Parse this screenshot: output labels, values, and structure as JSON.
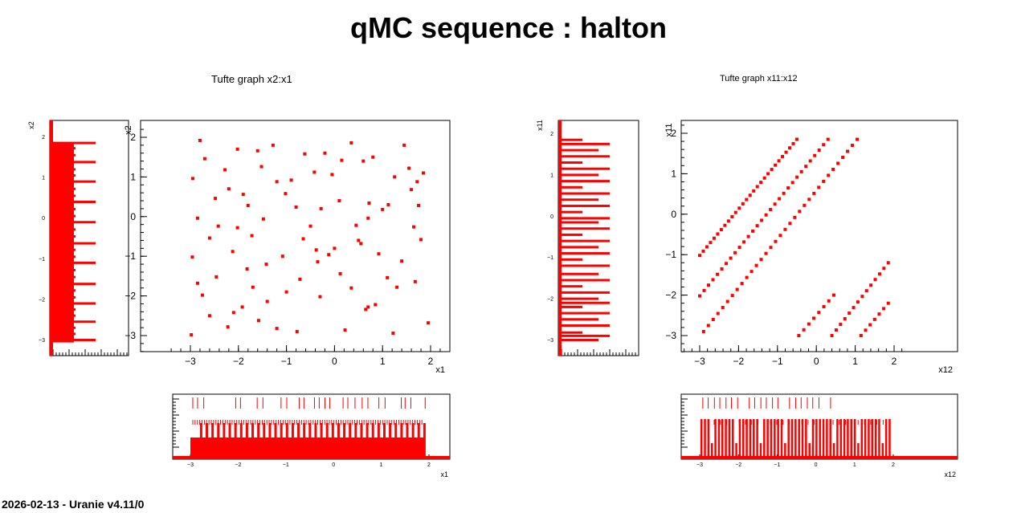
{
  "title": "qMC sequence : halton",
  "footer": "2026-02-13 - Uranie v4.11/0",
  "chart_data": [
    {
      "name": "tufte-left",
      "type": "scatter",
      "title": "Tufte graph x2:x1",
      "xlabel": "x1",
      "ylabel": "x2",
      "xlim": [
        -3.4,
        2.4
      ],
      "ylim": [
        -3.4,
        2.4
      ],
      "xticks": [
        -3,
        -2,
        -1,
        0,
        1,
        2
      ],
      "yticks": [
        -3,
        -2,
        -1,
        0,
        1,
        2
      ],
      "color": "#ff0000",
      "points": [
        [
          -2.98,
          -2.98
        ],
        [
          -2.8,
          1.92
        ],
        [
          -2.7,
          1.46
        ],
        [
          -2.95,
          0.96
        ],
        [
          -2.85,
          -0.04
        ],
        [
          -2.6,
          -0.54
        ],
        [
          -2.96,
          -1.02
        ],
        [
          -2.85,
          -1.68
        ],
        [
          -2.75,
          -1.98
        ],
        [
          -2.6,
          -2.5
        ],
        [
          -2.48,
          0.46
        ],
        [
          -2.42,
          -0.24
        ],
        [
          -2.46,
          -1.52
        ],
        [
          -2.28,
          1.18
        ],
        [
          -2.2,
          0.7
        ],
        [
          -2.12,
          -0.88
        ],
        [
          -2.22,
          -2.78
        ],
        [
          -2.1,
          -2.42
        ],
        [
          -2.02,
          1.7
        ],
        [
          -2.02,
          -0.28
        ],
        [
          -1.92,
          -2.28
        ],
        [
          -1.9,
          0.56
        ],
        [
          -1.8,
          0.28
        ],
        [
          -1.82,
          -1.32
        ],
        [
          -1.7,
          -1.78
        ],
        [
          -1.6,
          1.66
        ],
        [
          -1.52,
          1.26
        ],
        [
          -1.72,
          -0.48
        ],
        [
          -1.58,
          -2.62
        ],
        [
          -1.48,
          -0.06
        ],
        [
          -1.42,
          -1.2
        ],
        [
          -1.4,
          -2.14
        ],
        [
          -1.28,
          1.8
        ],
        [
          -1.2,
          0.88
        ],
        [
          -1.2,
          -2.82
        ],
        [
          -1.08,
          -1.0
        ],
        [
          -1.02,
          0.58
        ],
        [
          -1.0,
          -1.9
        ],
        [
          -0.9,
          0.92
        ],
        [
          -0.8,
          0.24
        ],
        [
          -0.78,
          -2.9
        ],
        [
          -0.72,
          -1.58
        ],
        [
          -0.62,
          1.58
        ],
        [
          -0.65,
          -0.56
        ],
        [
          -0.5,
          -0.24
        ],
        [
          -0.42,
          1.12
        ],
        [
          -0.38,
          -0.84
        ],
        [
          -0.3,
          -2.02
        ],
        [
          -0.2,
          1.6
        ],
        [
          -0.28,
          0.2
        ],
        [
          -0.12,
          -0.96
        ],
        [
          -0.05,
          1.06
        ],
        [
          0.0,
          -0.8
        ],
        [
          0.12,
          -1.44
        ],
        [
          0.1,
          0.4
        ],
        [
          0.22,
          -2.86
        ],
        [
          0.15,
          1.42
        ],
        [
          0.35,
          1.86
        ],
        [
          0.35,
          -1.8
        ],
        [
          0.45,
          -0.22
        ],
        [
          0.5,
          -0.6
        ],
        [
          0.6,
          1.4
        ],
        [
          0.65,
          -2.34
        ],
        [
          0.7,
          -0.04
        ],
        [
          0.8,
          1.5
        ],
        [
          0.7,
          -2.28
        ],
        [
          0.72,
          0.34
        ],
        [
          0.85,
          -2.22
        ],
        [
          0.92,
          -0.94
        ],
        [
          1.0,
          0.18
        ],
        [
          1.1,
          -1.54
        ],
        [
          1.12,
          0.3
        ],
        [
          1.22,
          -2.94
        ],
        [
          1.25,
          1.0
        ],
        [
          1.3,
          -1.78
        ],
        [
          1.4,
          -1.12
        ],
        [
          1.45,
          1.8
        ],
        [
          1.55,
          1.22
        ],
        [
          1.6,
          0.68
        ],
        [
          1.65,
          -0.26
        ],
        [
          1.68,
          -1.64
        ],
        [
          1.75,
          0.28
        ],
        [
          1.8,
          -0.58
        ],
        [
          1.85,
          1.1
        ],
        [
          1.95,
          -2.68
        ],
        [
          1.72,
          0.88
        ],
        [
          0.55,
          -0.68
        ],
        [
          -0.35,
          -1.14
        ]
      ],
      "x_marginal_ticks_top": [
        -2.95,
        -2.85,
        -2.72,
        -2.05,
        -1.95,
        -1.6,
        -1.48,
        -1.1,
        -0.98,
        -0.72,
        -0.62,
        -0.4,
        -0.3,
        -0.18,
        -0.08,
        0.2,
        0.3,
        0.45,
        0.6,
        0.72,
        0.95,
        1.08,
        1.42,
        1.5,
        1.62,
        1.92
      ],
      "y_marginal_bars": [
        -3.0,
        -2.85,
        -2.7,
        -2.55,
        -2.4,
        -2.25,
        -2.1,
        -1.95,
        -1.78,
        -1.62,
        -1.45,
        -1.28,
        -1.1,
        -0.95,
        -0.78,
        -0.62,
        -0.45,
        -0.28,
        -0.1,
        0.05,
        0.22,
        0.4,
        0.55,
        0.72,
        0.9,
        1.05,
        1.2,
        1.38,
        1.55,
        1.72,
        1.85
      ]
    },
    {
      "name": "tufte-right",
      "type": "scatter",
      "title": "Tufte graph x11:x12",
      "xlabel": "x12",
      "ylabel": "x11",
      "xlim": [
        -3.4,
        2.4
      ],
      "ylim": [
        -3.4,
        2.4
      ],
      "xticks": [
        -3,
        -2,
        -1,
        0,
        1,
        2
      ],
      "yticks": [
        -3,
        -2,
        -1,
        0,
        1,
        2
      ],
      "color": "#ff0000",
      "lines": [
        {
          "x0": -3.0,
          "y0": -1.02,
          "x1": -0.5,
          "y1": 1.85,
          "n": 28
        },
        {
          "x0": -3.0,
          "y0": -2.02,
          "x1": 0.3,
          "y1": 1.85,
          "n": 30
        },
        {
          "x0": -2.9,
          "y0": -2.9,
          "x1": 1.05,
          "y1": 1.85,
          "n": 33
        },
        {
          "x0": -0.45,
          "y0": -3.0,
          "x1": 0.45,
          "y1": -2.0,
          "n": 8
        },
        {
          "x0": 0.4,
          "y0": -3.0,
          "x1": 1.85,
          "y1": -1.2,
          "n": 14
        },
        {
          "x0": 1.15,
          "y0": -3.0,
          "x1": 1.85,
          "y1": -2.2,
          "n": 7
        }
      ],
      "x_marginal_ticks_top": [
        -2.92,
        -2.78,
        -2.62,
        -2.48,
        -2.32,
        -2.18,
        -2.02,
        -1.72,
        -1.58,
        -1.42,
        -1.28,
        -1.12,
        -0.98,
        -0.68,
        -0.52,
        -0.38,
        -0.22,
        -0.08,
        0.08,
        0.38
      ],
      "y_marginal_bars": [
        -3.0,
        -2.9,
        -2.82,
        -2.65,
        -2.5,
        -2.35,
        -2.2,
        -2.1,
        -2.0,
        -1.85,
        -1.7,
        -1.55,
        -1.4,
        -1.2,
        -1.05,
        -0.9,
        -0.75,
        -0.6,
        -0.45,
        -0.3,
        -0.15,
        -0.05,
        0.1,
        0.25,
        0.4,
        0.55,
        0.7,
        0.85,
        1.0,
        1.15,
        1.3,
        1.45,
        1.6,
        1.75,
        1.85
      ]
    }
  ]
}
